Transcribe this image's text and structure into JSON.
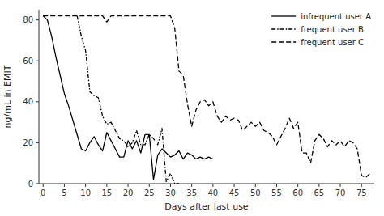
{
  "chart_data": {
    "type": "line",
    "xlabel": "Days after last use",
    "ylabel": "ng/mL in EMIT",
    "xlim": [
      -1,
      78
    ],
    "ylim": [
      0,
      85
    ],
    "xticks": [
      0,
      5,
      10,
      15,
      20,
      25,
      30,
      35,
      40,
      45,
      50,
      55,
      60,
      65,
      70,
      75
    ],
    "yticks": [
      0,
      20,
      40,
      60,
      80
    ],
    "grid": false,
    "legend": "upper right",
    "series": [
      {
        "name": "infrequent user A",
        "color": "black",
        "line_style": "solid",
        "x": [
          0,
          1,
          2,
          3,
          4,
          5,
          6,
          7,
          8,
          9,
          10,
          11,
          12,
          13,
          14,
          15,
          16,
          17,
          18,
          19,
          20,
          21,
          22,
          23,
          24,
          25,
          26,
          27,
          28,
          29,
          30,
          31,
          32,
          33,
          34,
          35,
          36,
          37,
          38,
          39,
          40
        ],
        "values": [
          82,
          80,
          72,
          62,
          53,
          44,
          38,
          31,
          24,
          17,
          16,
          20,
          23,
          19,
          16,
          25,
          21,
          17,
          13,
          13,
          21,
          17,
          21,
          15,
          24,
          24,
          2,
          14,
          17,
          15,
          13,
          14,
          16,
          12,
          15,
          14,
          12,
          13,
          12,
          13,
          12
        ]
      },
      {
        "name": "frequent user B",
        "color": "black",
        "line_style": "dashdot",
        "x": [
          8,
          9,
          10,
          11,
          12,
          13,
          14,
          15,
          16,
          17,
          18,
          19,
          20,
          21,
          22,
          23,
          24,
          25,
          26,
          27,
          28,
          29,
          30,
          31,
          32
        ],
        "values": [
          82,
          72,
          65,
          45,
          43,
          42,
          33,
          29,
          30,
          26,
          22,
          21,
          18,
          20,
          26,
          19,
          19,
          24,
          22,
          19,
          27,
          1,
          5,
          0,
          0
        ]
      },
      {
        "name": "frequent user C",
        "color": "black",
        "line_style": "dashed",
        "x": [
          0,
          1,
          2,
          3,
          4,
          5,
          6,
          7,
          8,
          9,
          10,
          11,
          12,
          13,
          14,
          15,
          16,
          17,
          18,
          19,
          20,
          21,
          22,
          23,
          24,
          25,
          26,
          27,
          28,
          29,
          30,
          31,
          32,
          33,
          34,
          35,
          36,
          37,
          38,
          39,
          40,
          41,
          42,
          43,
          44,
          45,
          46,
          47,
          48,
          49,
          50,
          51,
          52,
          53,
          54,
          55,
          56,
          57,
          58,
          59,
          60,
          61,
          62,
          63,
          64,
          65,
          66,
          67,
          68,
          69,
          70,
          71,
          72,
          73,
          74,
          75,
          76,
          77
        ],
        "values": [
          82,
          82,
          82,
          82,
          82,
          82,
          82,
          82,
          82,
          82,
          82,
          82,
          82,
          82,
          82,
          79,
          82,
          82,
          82,
          82,
          82,
          82,
          82,
          82,
          82,
          82,
          82,
          82,
          82,
          82,
          82,
          76,
          55,
          53,
          39,
          28,
          36,
          40,
          41,
          38,
          40,
          33,
          30,
          33,
          31,
          32,
          31,
          26,
          28,
          30,
          28,
          30,
          26,
          25,
          23,
          19,
          23,
          27,
          32,
          27,
          30,
          15,
          15,
          10,
          21,
          24,
          22,
          18,
          21,
          19,
          21,
          18,
          21,
          20,
          17,
          4,
          3,
          5
        ]
      }
    ]
  }
}
